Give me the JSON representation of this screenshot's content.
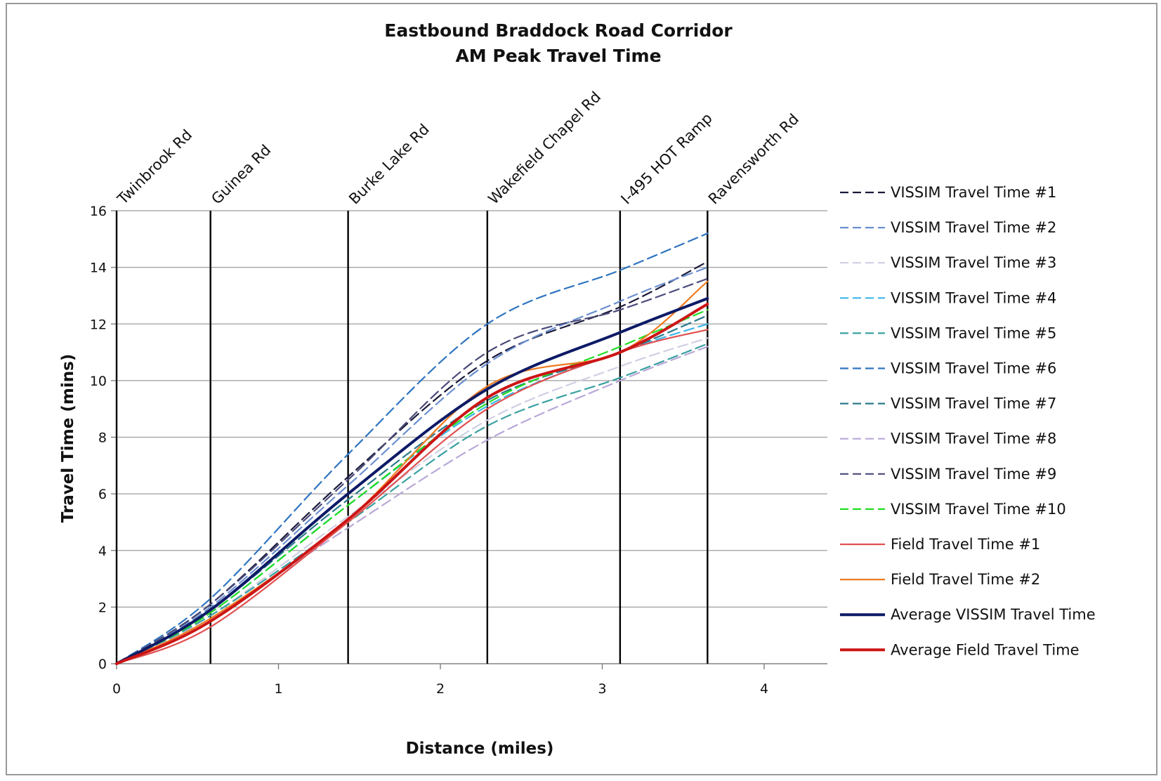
{
  "chart_data": {
    "type": "line",
    "title": "Eastbound Braddock Road Corridor",
    "subtitle": "AM Peak Travel Time",
    "xlabel": "Distance (miles)",
    "ylabel": "Travel Time (mins)",
    "xlim": [
      0,
      4.4
    ],
    "ylim": [
      0,
      16
    ],
    "x_ticks": [
      0,
      1,
      2,
      3,
      4
    ],
    "y_ticks": [
      0,
      2,
      4,
      6,
      8,
      10,
      12,
      14,
      16
    ],
    "grid": "horizontal",
    "legend_position": "right",
    "reference_lines": [
      {
        "label": "Twinbrook Rd",
        "x": 0
      },
      {
        "label": "Guinea Rd",
        "x": 0.58
      },
      {
        "label": "Burke Lake Rd",
        "x": 1.43
      },
      {
        "label": "Wakefield Chapel Rd",
        "x": 2.29
      },
      {
        "label": "I-495 HOT Ramp",
        "x": 3.11
      },
      {
        "label": "Ravensworth Rd",
        "x": 3.65
      }
    ],
    "x": [
      0,
      0.58,
      1.43,
      2.29,
      3.11,
      3.65
    ],
    "series": [
      {
        "name": "VISSIM Travel Time #1",
        "color": "#1a1a3a",
        "dash": "dashed",
        "values": [
          0,
          2.1,
          6.6,
          10.7,
          12.6,
          14.2
        ]
      },
      {
        "name": "VISSIM Travel Time #2",
        "color": "#6b8fd0",
        "dash": "dashed",
        "values": [
          0,
          2.0,
          6.3,
          10.6,
          12.8,
          14.0
        ]
      },
      {
        "name": "VISSIM Travel Time #3",
        "color": "#cfcfe4",
        "dash": "dashed",
        "values": [
          0,
          1.7,
          5.2,
          8.6,
          10.5,
          11.5
        ]
      },
      {
        "name": "VISSIM Travel Time #4",
        "color": "#3fb5e8",
        "dash": "dashed",
        "values": [
          0,
          1.8,
          5.6,
          9.1,
          11.0,
          12.0
        ]
      },
      {
        "name": "VISSIM Travel Time #5",
        "color": "#3aa0a0",
        "dash": "dashed",
        "values": [
          0,
          1.7,
          5.0,
          8.4,
          10.1,
          11.3
        ]
      },
      {
        "name": "VISSIM Travel Time #6",
        "color": "#2e74c0",
        "dash": "dashed",
        "values": [
          0,
          2.3,
          7.4,
          12.0,
          13.9,
          15.2
        ]
      },
      {
        "name": "VISSIM Travel Time #7",
        "color": "#2a7a8a",
        "dash": "dashed",
        "values": [
          0,
          1.9,
          5.8,
          9.3,
          11.0,
          12.3
        ]
      },
      {
        "name": "VISSIM Travel Time #8",
        "color": "#b9a8d8",
        "dash": "dashed",
        "values": [
          0,
          1.6,
          4.8,
          7.9,
          10.0,
          11.2
        ]
      },
      {
        "name": "VISSIM Travel Time #9",
        "color": "#4a4a7a",
        "dash": "dashed",
        "values": [
          0,
          2.1,
          6.5,
          11.0,
          12.5,
          13.6
        ]
      },
      {
        "name": "VISSIM Travel Time #10",
        "color": "#22dd22",
        "dash": "dashed",
        "values": [
          0,
          1.8,
          5.6,
          9.2,
          11.2,
          12.5
        ]
      },
      {
        "name": "Field Travel Time #1",
        "color": "#e05050",
        "dash": "solid",
        "values": [
          0,
          1.3,
          5.0,
          9.0,
          11.0,
          11.8
        ]
      },
      {
        "name": "Field Travel Time #2",
        "color": "#ee7a20",
        "dash": "solid",
        "values": [
          0,
          1.6,
          5.1,
          9.8,
          11.0,
          13.5
        ]
      },
      {
        "name": "Average VISSIM Travel Time",
        "color": "#0d1a66",
        "dash": "solid",
        "bold": true,
        "values": [
          0,
          1.9,
          6.0,
          9.7,
          11.7,
          12.9
        ]
      },
      {
        "name": "Average Field Travel Time",
        "color": "#cc1515",
        "dash": "solid",
        "bold": true,
        "values": [
          0,
          1.5,
          5.1,
          9.4,
          11.0,
          12.7
        ]
      }
    ]
  }
}
